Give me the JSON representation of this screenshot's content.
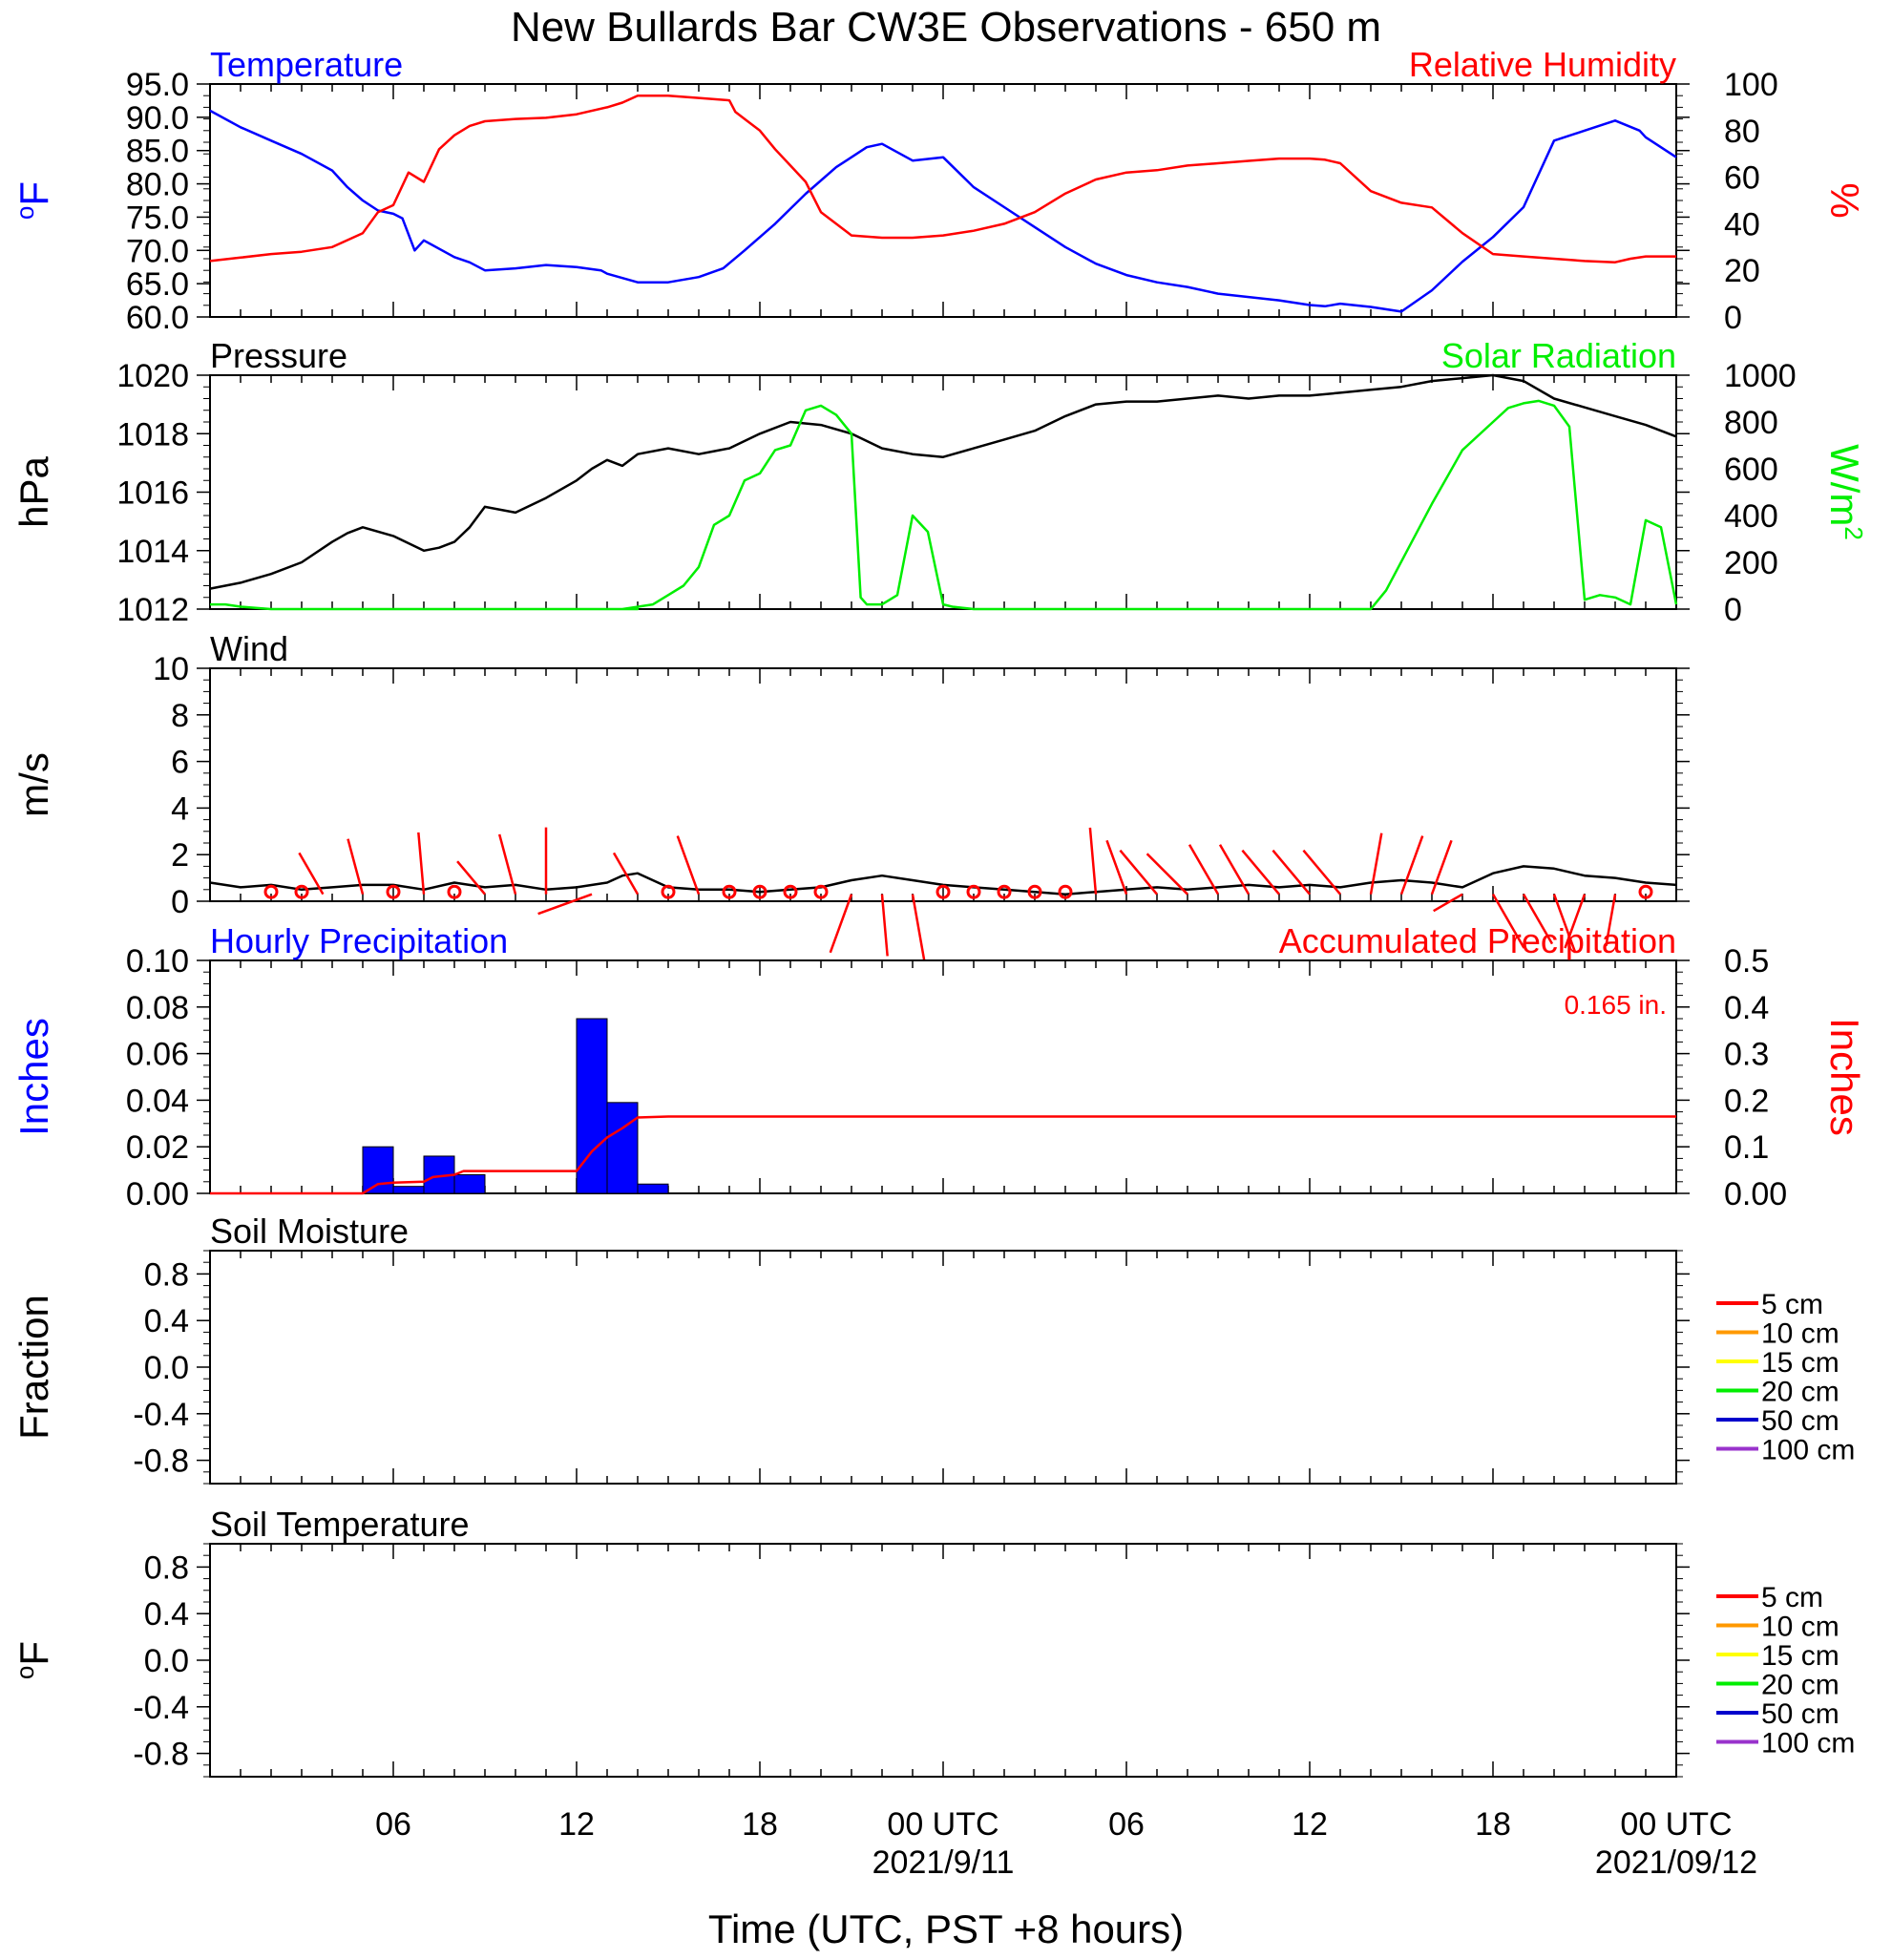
{
  "title": "New Bullards Bar CW3E Observations - 650 m",
  "colors": {
    "blue": "#0000ff",
    "red": "#ff0000",
    "green": "#00ee00",
    "black": "#000000",
    "bar": "#0000ff",
    "soil_5": "#ff0000",
    "soil_10": "#ff9900",
    "soil_15": "#ffff00",
    "soil_20": "#00ee00",
    "soil_50": "#0000cc",
    "soil_100": "#9933cc"
  },
  "x_axis": {
    "label": "Time (UTC, PST +8 hours)",
    "tick_labels": [
      "06",
      "12",
      "18",
      "00 UTC",
      "06",
      "12",
      "18",
      "00 UTC"
    ],
    "date_labels": [
      "2021/9/11",
      "2021/09/12"
    ],
    "range_hours": [
      0,
      48
    ]
  },
  "chart_data": [
    {
      "type": "line",
      "title_left": "Temperature",
      "title_right": "Relative Humidity",
      "ylabel_left": "oF",
      "ylabel_right": "%",
      "ylim_left": [
        60,
        95
      ],
      "ylim_right": [
        0,
        100
      ],
      "yticks_left": [
        "95.0",
        "90.0",
        "85.0",
        "80.0",
        "75.0",
        "70.0",
        "65.0",
        "60.0"
      ],
      "yticks_right": [
        "100",
        "80",
        "60",
        "40",
        "20",
        "0"
      ],
      "series": [
        {
          "name": "Temperature",
          "axis": "left",
          "color": "#0000ff",
          "x": [
            0,
            1,
            2,
            3,
            4,
            4.5,
            5,
            5.5,
            6,
            6.3,
            6.7,
            7,
            8,
            8.5,
            9,
            10,
            11,
            12,
            12.8,
            13,
            14,
            15,
            16,
            16.8,
            17.5,
            18.5,
            19.5,
            20.5,
            21.5,
            22,
            23,
            24,
            25,
            26,
            27,
            28,
            29,
            30,
            31,
            32,
            33,
            34,
            35,
            36,
            36.5,
            37,
            38,
            39,
            40,
            41,
            42,
            43,
            44,
            45,
            46,
            46.8,
            47,
            48
          ],
          "y": [
            91,
            88.5,
            86.5,
            84.5,
            82,
            79.5,
            77.5,
            76,
            75.5,
            74.8,
            70,
            71.5,
            69,
            68.2,
            67,
            67.3,
            67.8,
            67.5,
            67,
            66.5,
            65.2,
            65.2,
            66,
            67.3,
            70,
            74,
            78.5,
            82.5,
            85.5,
            86,
            83.5,
            84,
            79.5,
            76.5,
            73.5,
            70.5,
            68,
            66.3,
            65.2,
            64.5,
            63.5,
            63,
            62.5,
            61.8,
            61.6,
            62,
            61.5,
            60.8,
            64,
            68.3,
            72,
            76.5,
            86.5,
            88,
            89.5,
            88,
            87,
            84
          ]
        },
        {
          "name": "Relative Humidity",
          "axis": "right",
          "color": "#ff0000",
          "x": [
            0,
            1,
            2,
            3,
            4,
            4.5,
            5,
            5.5,
            6,
            6.5,
            7,
            7.5,
            8,
            8.5,
            9,
            10,
            11,
            12,
            13,
            13.5,
            14,
            15,
            16,
            17,
            17.2,
            18,
            18.5,
            19,
            19.5,
            20,
            21,
            22,
            23,
            24,
            25,
            26,
            27,
            28,
            29,
            30,
            31,
            32,
            33,
            34,
            35,
            36,
            36.5,
            37,
            38,
            39,
            40,
            41,
            42,
            43,
            44,
            45,
            46,
            46.5,
            47,
            48
          ],
          "y": [
            24,
            25.5,
            27,
            28,
            30,
            33,
            36,
            45,
            48,
            62,
            58,
            72,
            78,
            82,
            84,
            85,
            85.5,
            87,
            90,
            92,
            95,
            95,
            94,
            93,
            88,
            80,
            72,
            65,
            58,
            45,
            35,
            34,
            34,
            35,
            37,
            40,
            45,
            53,
            59,
            62,
            63,
            65,
            66,
            67,
            68,
            68,
            67.5,
            66,
            54,
            49,
            47,
            36,
            27,
            26,
            25,
            24,
            23.5,
            25,
            26,
            26
          ]
        }
      ]
    },
    {
      "type": "line",
      "title_left": "Pressure",
      "title_right": "Solar Radiation",
      "ylabel_left": "hPa",
      "ylabel_right": "W/m2",
      "ylim_left": [
        1012,
        1020
      ],
      "ylim_right": [
        0,
        1000
      ],
      "yticks_left": [
        "1020",
        "1018",
        "1016",
        "1014",
        "1012"
      ],
      "yticks_right": [
        "1000",
        "800",
        "600",
        "400",
        "200",
        "0"
      ],
      "series": [
        {
          "name": "Pressure",
          "axis": "left",
          "color": "#000000",
          "x": [
            0,
            1,
            2,
            3,
            4,
            4.5,
            5,
            6,
            7,
            7.5,
            8,
            8.5,
            9,
            10,
            11,
            12,
            12.5,
            13,
            13.5,
            14,
            15,
            16,
            16.5,
            17,
            18,
            19,
            20,
            21,
            22,
            23,
            24,
            25,
            26,
            27,
            28,
            29,
            30,
            31,
            32,
            33,
            34,
            35,
            36,
            37,
            38,
            39,
            40,
            41,
            42,
            43,
            44,
            45,
            46,
            47,
            48
          ],
          "y": [
            1012.7,
            1012.9,
            1013.2,
            1013.6,
            1014.3,
            1014.6,
            1014.8,
            1014.5,
            1014,
            1014.1,
            1014.3,
            1014.8,
            1015.5,
            1015.3,
            1015.8,
            1016.4,
            1016.8,
            1017.1,
            1016.9,
            1017.3,
            1017.5,
            1017.3,
            1017.4,
            1017.5,
            1018,
            1018.4,
            1018.3,
            1018,
            1017.5,
            1017.3,
            1017.2,
            1017.5,
            1017.8,
            1018.1,
            1018.6,
            1019,
            1019.1,
            1019.1,
            1019.2,
            1019.3,
            1019.2,
            1019.3,
            1019.3,
            1019.4,
            1019.5,
            1019.6,
            1019.8,
            1019.9,
            1020,
            1019.8,
            1019.2,
            1018.9,
            1018.6,
            1018.3,
            1017.9
          ]
        },
        {
          "name": "Solar Radiation",
          "axis": "right",
          "color": "#00ee00",
          "x": [
            0,
            0.5,
            1,
            2,
            8,
            14,
            13.5,
            14.5,
            15,
            15.5,
            16,
            16.5,
            17,
            17.5,
            18,
            18.5,
            19,
            19.5,
            20,
            20.5,
            21,
            21.3,
            21.5,
            22,
            22.5,
            23,
            23.5,
            24,
            24.3,
            25,
            26,
            38,
            38.5,
            40,
            41,
            42,
            42.5,
            43,
            43.5,
            44,
            44.5,
            45,
            45.5,
            46,
            46.5,
            47,
            47.5,
            48
          ],
          "y": [
            20,
            20,
            10,
            0,
            0,
            0,
            0,
            20,
            60,
            100,
            180,
            360,
            400,
            550,
            580,
            680,
            700,
            850,
            870,
            830,
            750,
            50,
            20,
            20,
            60,
            400,
            330,
            20,
            10,
            0,
            0,
            0,
            80,
            450,
            680,
            800,
            860,
            880,
            890,
            870,
            780,
            40,
            60,
            50,
            20,
            380,
            350,
            20
          ]
        }
      ]
    },
    {
      "type": "line",
      "title_left": "Wind",
      "ylabel_left": "m/s",
      "ylim_left": [
        0,
        10
      ],
      "yticks_left": [
        "10",
        "8",
        "6",
        "4",
        "2",
        "0"
      ],
      "series": [
        {
          "name": "Wind",
          "axis": "left",
          "color": "#000000",
          "x": [
            0,
            1,
            2,
            3,
            4,
            5,
            6,
            7,
            8,
            9,
            10,
            11,
            12,
            13,
            13.5,
            14,
            15,
            16,
            17,
            18,
            19,
            20,
            21,
            22,
            23,
            24,
            25,
            26,
            27,
            28,
            29,
            30,
            31,
            32,
            33,
            34,
            35,
            36,
            37,
            38,
            39,
            40,
            41,
            42,
            43,
            44,
            45,
            46,
            47,
            48
          ],
          "y": [
            0.8,
            0.6,
            0.7,
            0.5,
            0.6,
            0.7,
            0.7,
            0.5,
            0.8,
            0.6,
            0.7,
            0.5,
            0.6,
            0.8,
            1.1,
            1.2,
            0.6,
            0.5,
            0.5,
            0.4,
            0.5,
            0.6,
            0.9,
            1.1,
            0.9,
            0.7,
            0.6,
            0.5,
            0.4,
            0.3,
            0.4,
            0.5,
            0.6,
            0.5,
            0.6,
            0.7,
            0.6,
            0.7,
            0.6,
            0.8,
            0.9,
            0.8,
            0.6,
            1.2,
            1.5,
            1.4,
            1.1,
            1.0,
            0.8,
            0.7
          ]
        }
      ],
      "wind_barbs": [
        {
          "x": 2,
          "speed": 0.3,
          "direction": 0
        },
        {
          "x": 3,
          "speed": 0.3,
          "direction": 0
        },
        {
          "x": 3.7,
          "speed": 1.0,
          "direction": 330
        },
        {
          "x": 5,
          "speed": 1.2,
          "direction": 345
        },
        {
          "x": 6,
          "speed": 0.3,
          "direction": 0
        },
        {
          "x": 7,
          "speed": 1.3,
          "direction": 355
        },
        {
          "x": 8,
          "speed": 0.3,
          "direction": 0
        },
        {
          "x": 9,
          "speed": 0.9,
          "direction": 320
        },
        {
          "x": 10,
          "speed": 1.3,
          "direction": 345
        },
        {
          "x": 11,
          "speed": 1.4,
          "direction": 0
        },
        {
          "x": 12.5,
          "speed": 1.2,
          "direction": 250
        },
        {
          "x": 14,
          "speed": 1.0,
          "direction": 330
        },
        {
          "x": 15,
          "speed": 0.3,
          "direction": 0
        },
        {
          "x": 16,
          "speed": 1.3,
          "direction": 340
        },
        {
          "x": 17,
          "speed": 0.3,
          "direction": 0
        },
        {
          "x": 18,
          "speed": 0.3,
          "direction": 0
        },
        {
          "x": 19,
          "speed": 0.3,
          "direction": 0
        },
        {
          "x": 20,
          "speed": 0.3,
          "direction": 0
        },
        {
          "x": 21,
          "speed": 1.3,
          "direction": 200
        },
        {
          "x": 22,
          "speed": 1.3,
          "direction": 175
        },
        {
          "x": 23,
          "speed": 1.4,
          "direction": 170
        },
        {
          "x": 24,
          "speed": 0.3,
          "direction": 0
        },
        {
          "x": 25,
          "speed": 0.3,
          "direction": 0
        },
        {
          "x": 26,
          "speed": 0.3,
          "direction": 0
        },
        {
          "x": 27,
          "speed": 0.3,
          "direction": 0
        },
        {
          "x": 28,
          "speed": 0.3,
          "direction": 0
        },
        {
          "x": 29,
          "speed": 1.4,
          "direction": 355
        },
        {
          "x": 30,
          "speed": 1.2,
          "direction": 340
        },
        {
          "x": 31,
          "speed": 1.2,
          "direction": 320
        },
        {
          "x": 32,
          "speed": 1.2,
          "direction": 315
        },
        {
          "x": 33,
          "speed": 1.2,
          "direction": 330
        },
        {
          "x": 34,
          "speed": 1.2,
          "direction": 330
        },
        {
          "x": 35,
          "speed": 1.2,
          "direction": 320
        },
        {
          "x": 36,
          "speed": 1.2,
          "direction": 320
        },
        {
          "x": 37,
          "speed": 1.2,
          "direction": 320
        },
        {
          "x": 38,
          "speed": 1.3,
          "direction": 10
        },
        {
          "x": 39,
          "speed": 1.3,
          "direction": 20
        },
        {
          "x": 40,
          "speed": 1.2,
          "direction": 20
        },
        {
          "x": 41,
          "speed": 0.7,
          "direction": 240
        },
        {
          "x": 42,
          "speed": 1.3,
          "direction": 150
        },
        {
          "x": 43,
          "speed": 1.2,
          "direction": 150
        },
        {
          "x": 44,
          "speed": 1.3,
          "direction": 160
        },
        {
          "x": 45,
          "speed": 1.2,
          "direction": 200
        },
        {
          "x": 46,
          "speed": 1.1,
          "direction": 190
        },
        {
          "x": 47,
          "speed": 0.3,
          "direction": 0
        }
      ]
    },
    {
      "type": "bar",
      "title_left": "Hourly Precipitation",
      "title_right": "Accumulated Precipitation",
      "annotation": "0.165 in.",
      "ylabel_left": "Inches",
      "ylabel_right": "Inches",
      "ylim_left": [
        0,
        0.1
      ],
      "ylim_right": [
        0,
        0.5
      ],
      "yticks_left": [
        "0.10",
        "0.08",
        "0.06",
        "0.04",
        "0.02",
        "0.00"
      ],
      "yticks_right": [
        "0.5",
        "0.4",
        "0.3",
        "0.2",
        "0.1",
        "0.00"
      ],
      "bars": {
        "name": "Hourly Precipitation",
        "hours": [
          5,
          6,
          7,
          8,
          9,
          10,
          11,
          12,
          13,
          14
        ],
        "values": [
          0.02,
          0.003,
          0.016,
          0.008,
          0.0,
          0.0,
          0.0,
          0.075,
          0.039,
          0.004
        ]
      },
      "series": [
        {
          "name": "Accumulated Precipitation",
          "axis": "right",
          "color": "#ff0000",
          "x": [
            0,
            5,
            5.5,
            6,
            7,
            7.3,
            8,
            8.3,
            9,
            12,
            12.5,
            13,
            13.5,
            14,
            15,
            48
          ],
          "y": [
            0,
            0,
            0.02,
            0.023,
            0.025,
            0.035,
            0.04,
            0.048,
            0.048,
            0.048,
            0.09,
            0.12,
            0.14,
            0.163,
            0.165,
            0.165
          ]
        }
      ]
    },
    {
      "type": "line",
      "title_left": "Soil Moisture",
      "ylabel_left": "Fraction",
      "ylim_left": [
        -1,
        1
      ],
      "yticks_left": [
        "0.8",
        "0.4",
        "0.0",
        "-0.4",
        "-0.8"
      ],
      "legend": [
        "5 cm",
        "10 cm",
        "15 cm",
        "20 cm",
        "50 cm",
        "100 cm"
      ]
    },
    {
      "type": "line",
      "title_left": "Soil Temperature",
      "ylabel_left": "oF",
      "ylim_left": [
        -1,
        1
      ],
      "yticks_left": [
        "0.8",
        "0.4",
        "0.0",
        "-0.4",
        "-0.8"
      ],
      "legend": [
        "5 cm",
        "10 cm",
        "15 cm",
        "20 cm",
        "50 cm",
        "100 cm"
      ]
    }
  ]
}
